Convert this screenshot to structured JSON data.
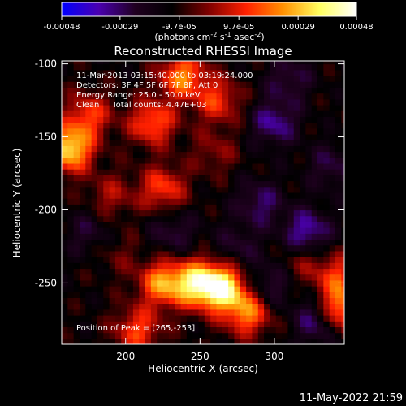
{
  "colorbar": {
    "tick_labels": [
      "-0.00048",
      "-0.00029",
      "-9.7e-05",
      "9.7e-05",
      "0.00029",
      "0.00048"
    ],
    "tick_values": [
      -0.00048,
      -0.00029,
      -9.7e-05,
      9.7e-05,
      0.00029,
      0.00048
    ],
    "range": [
      -0.00048,
      0.00048
    ],
    "units_main": "(photons cm",
    "units_exp1": "-2",
    "units_mid": " s",
    "units_exp2": "-1",
    "units_end": " asec",
    "units_exp3": "-2",
    "units_close": ")",
    "colors": [
      "#0000ff",
      "#4a00b0",
      "#200020",
      "#000000",
      "#800000",
      "#ff2000",
      "#ff9000",
      "#ffff60",
      "#ffffff"
    ]
  },
  "chart_data": {
    "type": "heatmap",
    "title": "Reconstructed RHESSI Image",
    "xlabel": "Heliocentric X (arcsec)",
    "ylabel": "Heliocentric Y (arcsec)",
    "xlim": [
      157,
      347
    ],
    "ylim": [
      -292,
      -98
    ],
    "x_ticks": [
      200,
      250,
      300
    ],
    "y_ticks": [
      -100,
      -150,
      -200,
      -250
    ],
    "annotations": [
      "11-Mar-2013 03:15:40.000 to 03:19:24.000",
      "Detectors: 3F 4F 5F 6F 7F 8F, Att 0",
      "Energy Range: 25.0 - 50.0 keV",
      "Clean     Total counts: 4.47E+03"
    ],
    "peak_label": "Position of Peak = [265,-253]",
    "peak": [
      265,
      -253
    ],
    "bright_sources": [
      {
        "x": 238,
        "y": -108,
        "value": 0.00034
      },
      {
        "x": 162,
        "y": -158,
        "value": 0.00046
      },
      {
        "x": 175,
        "y": -135,
        "value": 0.00025
      },
      {
        "x": 218,
        "y": -140,
        "value": 0.0003
      },
      {
        "x": 262,
        "y": -125,
        "value": 0.00024
      },
      {
        "x": 225,
        "y": -185,
        "value": 0.00026
      },
      {
        "x": 190,
        "y": -190,
        "value": 0.00015
      },
      {
        "x": 260,
        "y": -160,
        "value": 0.00012
      },
      {
        "x": 265,
        "y": -253,
        "value": 0.00048
      },
      {
        "x": 248,
        "y": -250,
        "value": 0.00042
      },
      {
        "x": 225,
        "y": -250,
        "value": 0.00036
      },
      {
        "x": 282,
        "y": -270,
        "value": 0.00033
      },
      {
        "x": 208,
        "y": -282,
        "value": 0.00026
      },
      {
        "x": 344,
        "y": -268,
        "value": 0.00038
      },
      {
        "x": 343,
        "y": -245,
        "value": 0.00022
      },
      {
        "x": 320,
        "y": -235,
        "value": 0.00012
      },
      {
        "x": 195,
        "y": -230,
        "value": 8e-05
      }
    ],
    "dark_sources": [
      {
        "x": 300,
        "y": -140,
        "value": -0.00022
      },
      {
        "x": 322,
        "y": -215,
        "value": -0.00026
      },
      {
        "x": 290,
        "y": -195,
        "value": -0.00018
      },
      {
        "x": 330,
        "y": -275,
        "value": -0.00024
      },
      {
        "x": 310,
        "y": -110,
        "value": -0.00015
      },
      {
        "x": 175,
        "y": -215,
        "value": -0.00012
      },
      {
        "x": 232,
        "y": -215,
        "value": -0.00014
      },
      {
        "x": 275,
        "y": -225,
        "value": -0.00012
      },
      {
        "x": 296,
        "y": -252,
        "value": -0.00016
      },
      {
        "x": 338,
        "y": -170,
        "value": -0.00014
      }
    ]
  },
  "timestamp": "11-May-2022 21:59"
}
